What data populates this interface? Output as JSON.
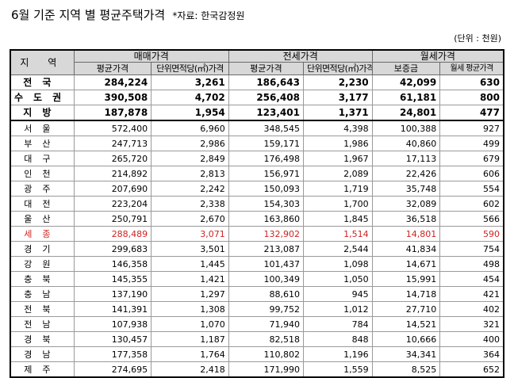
{
  "title": {
    "main": "6월 기준 지역 별 평균주택가격",
    "source": "*자료: 한국감정원"
  },
  "unit": "(단위 : 천원)",
  "header": {
    "region": "지 역",
    "group_sale": "매매가격",
    "group_jeonse": "전세가격",
    "group_monthly": "월세가격",
    "sale_avg": "평균가격",
    "sale_unit": "단위면적당(㎡)가격",
    "jeonse_avg": "평균가격",
    "jeonse_unit": "단위면적당(㎡)가격",
    "deposit": "보증금",
    "monthly_avg": "월세 평균가격"
  },
  "rows": [
    {
      "region": "전국",
      "c1": "284,224",
      "c2": "3,261",
      "c3": "186,643",
      "c4": "2,230",
      "c5": "42,099",
      "c6": "630"
    },
    {
      "region": "수도권",
      "c1": "390,508",
      "c2": "4,702",
      "c3": "256,408",
      "c4": "3,177",
      "c5": "61,181",
      "c6": "800"
    },
    {
      "region": "지방",
      "c1": "187,878",
      "c2": "1,954",
      "c3": "123,401",
      "c4": "1,371",
      "c5": "24,801",
      "c6": "477"
    },
    {
      "region": "서울",
      "c1": "572,400",
      "c2": "6,960",
      "c3": "348,545",
      "c4": "4,398",
      "c5": "100,388",
      "c6": "927"
    },
    {
      "region": "부산",
      "c1": "247,713",
      "c2": "2,986",
      "c3": "159,171",
      "c4": "1,986",
      "c5": "40,860",
      "c6": "499"
    },
    {
      "region": "대구",
      "c1": "265,720",
      "c2": "2,849",
      "c3": "176,498",
      "c4": "1,967",
      "c5": "17,113",
      "c6": "679"
    },
    {
      "region": "인천",
      "c1": "214,892",
      "c2": "2,813",
      "c3": "156,971",
      "c4": "2,089",
      "c5": "22,426",
      "c6": "606"
    },
    {
      "region": "광주",
      "c1": "207,690",
      "c2": "2,242",
      "c3": "150,093",
      "c4": "1,719",
      "c5": "35,748",
      "c6": "554"
    },
    {
      "region": "대전",
      "c1": "223,204",
      "c2": "2,338",
      "c3": "154,303",
      "c4": "1,700",
      "c5": "32,089",
      "c6": "602"
    },
    {
      "region": "울산",
      "c1": "250,791",
      "c2": "2,670",
      "c3": "163,860",
      "c4": "1,845",
      "c5": "36,518",
      "c6": "566"
    },
    {
      "region": "세종",
      "c1": "288,489",
      "c2": "3,071",
      "c3": "132,902",
      "c4": "1,514",
      "c5": "14,801",
      "c6": "590"
    },
    {
      "region": "경기",
      "c1": "299,683",
      "c2": "3,501",
      "c3": "213,087",
      "c4": "2,544",
      "c5": "41,834",
      "c6": "754"
    },
    {
      "region": "강원",
      "c1": "146,358",
      "c2": "1,445",
      "c3": "101,437",
      "c4": "1,098",
      "c5": "14,671",
      "c6": "498"
    },
    {
      "region": "충북",
      "c1": "145,355",
      "c2": "1,421",
      "c3": "100,349",
      "c4": "1,050",
      "c5": "15,991",
      "c6": "454"
    },
    {
      "region": "충남",
      "c1": "137,190",
      "c2": "1,297",
      "c3": "88,610",
      "c4": "945",
      "c5": "14,718",
      "c6": "421"
    },
    {
      "region": "전북",
      "c1": "141,391",
      "c2": "1,308",
      "c3": "99,752",
      "c4": "1,012",
      "c5": "27,710",
      "c6": "402"
    },
    {
      "region": "전남",
      "c1": "107,938",
      "c2": "1,070",
      "c3": "71,940",
      "c4": "784",
      "c5": "14,521",
      "c6": "321"
    },
    {
      "region": "경북",
      "c1": "130,457",
      "c2": "1,187",
      "c3": "82,518",
      "c4": "848",
      "c5": "10,666",
      "c6": "400"
    },
    {
      "region": "경남",
      "c1": "177,358",
      "c2": "1,764",
      "c3": "110,802",
      "c4": "1,196",
      "c5": "34,341",
      "c6": "364"
    },
    {
      "region": "제주",
      "c1": "274,695",
      "c2": "2,418",
      "c3": "171,990",
      "c4": "1,559",
      "c5": "8,525",
      "c6": "652"
    }
  ],
  "highlight_color": "#d02222"
}
